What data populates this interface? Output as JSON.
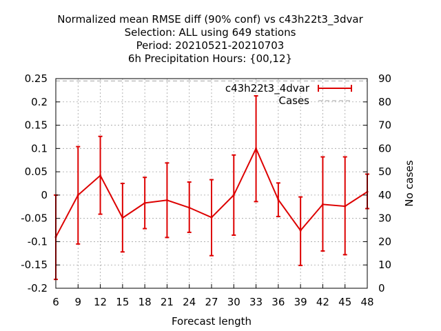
{
  "chart_data": {
    "type": "line",
    "title_lines": [
      "Normalized mean RMSE diff (90% conf) vs c43h22t3_3dvar",
      "Selection: ALL using   649 stations",
      "Period: 20210521-20210703",
      "6h Precipitation   Hours: {00,12}"
    ],
    "xlabel": "Forecast length",
    "ylabel": "",
    "y2label": "No cases",
    "x": [
      6,
      9,
      12,
      15,
      18,
      21,
      24,
      27,
      30,
      33,
      36,
      39,
      42,
      45,
      48
    ],
    "xlim": [
      6,
      48
    ],
    "ylim": [
      -0.2,
      0.25
    ],
    "y2lim": [
      0,
      90
    ],
    "yticks": [
      "-0.2",
      "-0.15",
      "-0.1",
      "-0.05",
      "0",
      "0.05",
      "0.1",
      "0.15",
      "0.2",
      "0.25"
    ],
    "y2ticks": [
      "0",
      "10",
      "20",
      "30",
      "40",
      "50",
      "60",
      "70",
      "80",
      "90"
    ],
    "xticks": [
      "6",
      "9",
      "12",
      "15",
      "18",
      "21",
      "24",
      "27",
      "30",
      "33",
      "36",
      "39",
      "42",
      "45",
      "48"
    ],
    "grid": true,
    "legend_position": "top-right",
    "series": [
      {
        "name": "c43h22t3_4dvar",
        "color": "#dd0000",
        "style": "line-errorbars",
        "values": [
          -0.09,
          0.0,
          0.042,
          -0.049,
          -0.017,
          -0.011,
          -0.027,
          -0.048,
          0.0,
          0.1,
          -0.01,
          -0.076,
          -0.02,
          -0.024,
          0.007
        ],
        "lower": [
          -0.181,
          -0.105,
          -0.041,
          -0.122,
          -0.072,
          -0.091,
          -0.08,
          -0.13,
          -0.086,
          -0.014,
          -0.046,
          -0.151,
          -0.12,
          -0.128,
          -0.029
        ],
        "upper": [
          0.0,
          0.104,
          0.126,
          0.025,
          0.038,
          0.069,
          0.028,
          0.033,
          0.086,
          0.213,
          0.026,
          -0.004,
          0.082,
          0.082,
          0.045
        ]
      },
      {
        "name": "Cases",
        "color": "#a0a0a0",
        "style": "dashed",
        "axis": "y2",
        "values": [
          89,
          89,
          89,
          89,
          89,
          89,
          89,
          89,
          89,
          89,
          89,
          89,
          89,
          89,
          89
        ]
      }
    ]
  }
}
